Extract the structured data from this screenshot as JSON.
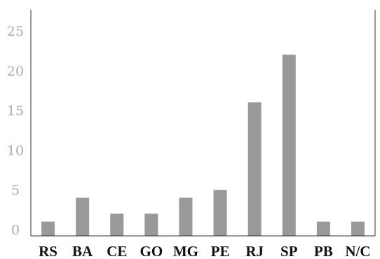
{
  "chart_data": {
    "type": "bar",
    "categories": [
      "RS",
      "BA",
      "CE",
      "GO",
      "MG",
      "PE",
      "RJ",
      "SP",
      "PB",
      "N/C"
    ],
    "values": [
      1,
      4,
      2,
      2,
      4,
      5,
      16,
      22,
      1,
      1
    ],
    "title": "",
    "xlabel": "",
    "ylabel": "",
    "ylim": [
      0,
      25
    ],
    "yticks": [
      0,
      5,
      10,
      15,
      20,
      25
    ],
    "grid": false,
    "colors": {
      "bar": "#999999",
      "axis": "#333333",
      "ytick": "#a9a9a9",
      "xtick": "#111111"
    }
  }
}
